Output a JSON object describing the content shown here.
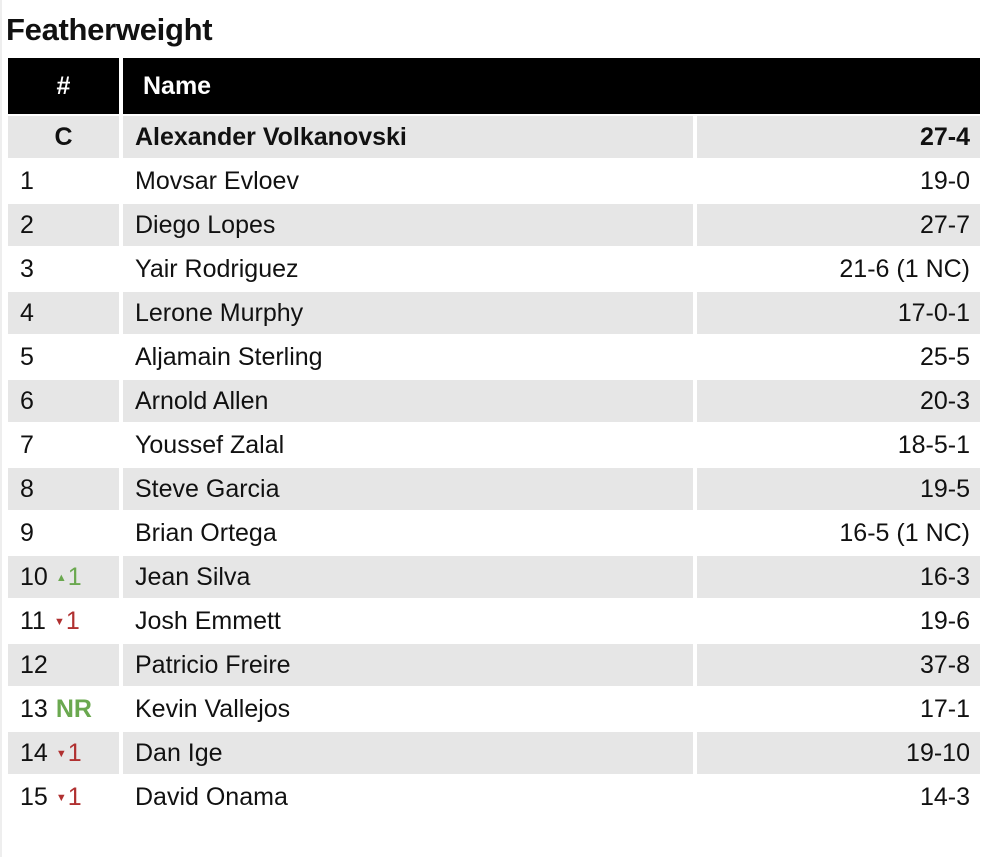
{
  "title": "Featherweight",
  "headers": {
    "rank": "#",
    "name": "Name"
  },
  "colors": {
    "up": "#6aa84f",
    "down": "#b03030",
    "header_bg": "#000000",
    "alt_row": "#e6e6e6"
  },
  "rows": [
    {
      "rank": "C",
      "change": "",
      "dir": "",
      "name": "Alexander Volkanovski",
      "record": "27-4"
    },
    {
      "rank": "1",
      "change": "",
      "dir": "",
      "name": "Movsar Evloev",
      "record": "19-0"
    },
    {
      "rank": "2",
      "change": "",
      "dir": "",
      "name": "Diego Lopes",
      "record": "27-7"
    },
    {
      "rank": "3",
      "change": "",
      "dir": "",
      "name": "Yair Rodriguez",
      "record": "21-6 (1 NC)"
    },
    {
      "rank": "4",
      "change": "",
      "dir": "",
      "name": "Lerone Murphy",
      "record": "17-0-1"
    },
    {
      "rank": "5",
      "change": "",
      "dir": "",
      "name": "Aljamain Sterling",
      "record": "25-5"
    },
    {
      "rank": "6",
      "change": "",
      "dir": "",
      "name": "Arnold Allen",
      "record": "20-3"
    },
    {
      "rank": "7",
      "change": "",
      "dir": "",
      "name": "Youssef Zalal",
      "record": "18-5-1"
    },
    {
      "rank": "8",
      "change": "",
      "dir": "",
      "name": "Steve Garcia",
      "record": "19-5"
    },
    {
      "rank": "9",
      "change": "",
      "dir": "",
      "name": "Brian Ortega",
      "record": "16-5 (1 NC)"
    },
    {
      "rank": "10",
      "change": "1",
      "dir": "up",
      "name": "Jean Silva",
      "record": "16-3"
    },
    {
      "rank": "11",
      "change": "1",
      "dir": "down",
      "name": "Josh Emmett",
      "record": "19-6"
    },
    {
      "rank": "12",
      "change": "",
      "dir": "",
      "name": "Patricio Freire",
      "record": "37-8"
    },
    {
      "rank": "13",
      "change": "NR",
      "dir": "new",
      "name": "Kevin Vallejos",
      "record": "17-1"
    },
    {
      "rank": "14",
      "change": "1",
      "dir": "down",
      "name": "Dan Ige",
      "record": "19-10"
    },
    {
      "rank": "15",
      "change": "1",
      "dir": "down",
      "name": "David Onama",
      "record": "14-3"
    }
  ]
}
